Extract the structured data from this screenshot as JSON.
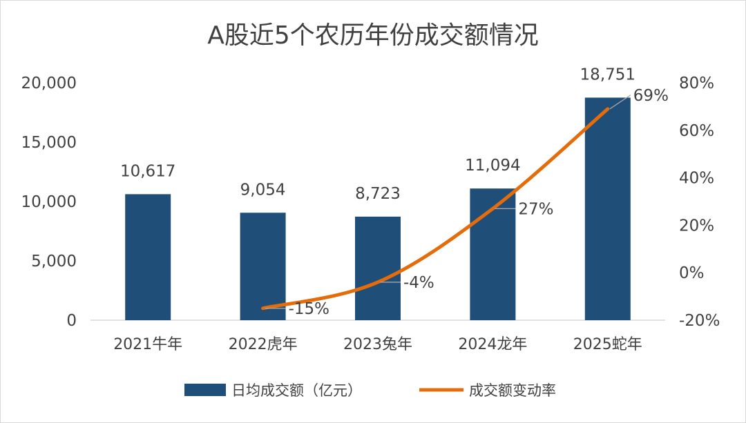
{
  "chart_data": {
    "type": "bar",
    "title": "A股近5个农历年份成交额情况",
    "categories": [
      "2021牛年",
      "2022虎年",
      "2023兔年",
      "2024龙年",
      "2025蛇年"
    ],
    "series": [
      {
        "name": "日均成交额（亿元）",
        "type": "bar",
        "axis": "left",
        "values": [
          10617,
          9054,
          8723,
          11094,
          18751
        ],
        "labels": [
          "10,617",
          "9,054",
          "8,723",
          "11,094",
          "18,751"
        ]
      },
      {
        "name": "成交额变动率",
        "type": "line",
        "axis": "right",
        "values": [
          null,
          -15,
          -4,
          27,
          69
        ],
        "labels": [
          "",
          "-15%",
          "-4%",
          "27%",
          "69%"
        ]
      }
    ],
    "y_left": {
      "min": 0,
      "max": 20000,
      "ticks": [
        0,
        5000,
        10000,
        15000,
        20000
      ],
      "tick_labels": [
        "0",
        "5,000",
        "10,000",
        "15,000",
        "20,000"
      ]
    },
    "y_right": {
      "min": -20,
      "max": 80,
      "ticks": [
        -20,
        0,
        20,
        40,
        60,
        80
      ],
      "tick_labels": [
        "-20%",
        "0%",
        "20%",
        "40%",
        "60%",
        "80%"
      ]
    },
    "grid": false,
    "legend_position": "bottom",
    "colors": {
      "bar": "#1f4e79",
      "line": "#e46c0a",
      "text": "#404040",
      "axis": "#d9d9d9",
      "leader": "#a6a6a6"
    }
  }
}
